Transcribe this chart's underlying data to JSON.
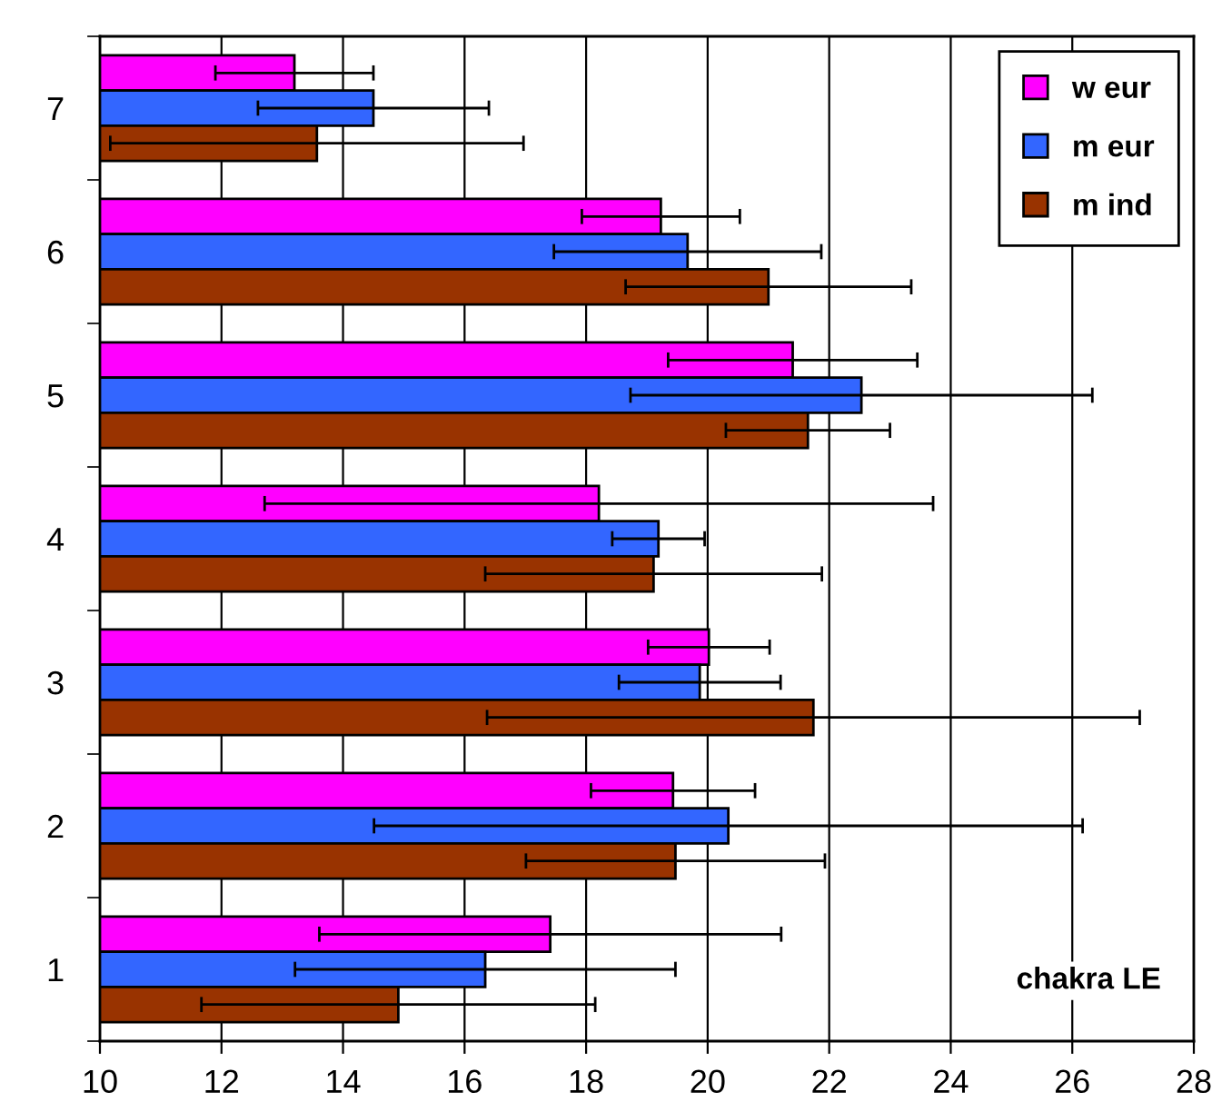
{
  "chart_data": {
    "type": "bar",
    "orientation": "horizontal",
    "categories": [
      "7",
      "6",
      "5",
      "4",
      "3",
      "2",
      "1"
    ],
    "series": [
      {
        "name": "w eur",
        "color": "#ff00ff",
        "values": [
          13.2,
          19.23,
          21.4,
          18.21,
          20.02,
          19.43,
          17.41
        ],
        "errors": [
          1.3,
          1.3,
          2.05,
          5.5,
          1.0,
          1.35,
          3.8
        ]
      },
      {
        "name": "m eur",
        "color": "#3366ff",
        "values": [
          14.5,
          19.67,
          22.53,
          19.19,
          19.87,
          20.34,
          16.34
        ],
        "errors": [
          1.9,
          2.2,
          3.8,
          0.76,
          1.33,
          5.83,
          3.13
        ]
      },
      {
        "name": "m ind",
        "color": "#993300",
        "values": [
          13.57,
          21.0,
          21.65,
          19.11,
          21.74,
          19.47,
          14.91
        ],
        "errors": [
          3.4,
          2.35,
          1.35,
          2.77,
          5.37,
          2.46,
          3.24
        ]
      }
    ],
    "xlim": [
      10,
      28
    ],
    "xticks": [
      10,
      12,
      14,
      16,
      18,
      20,
      22,
      24,
      26,
      28
    ],
    "grid": "x",
    "legend": "top right",
    "annotations": [
      "chakra LE"
    ]
  }
}
